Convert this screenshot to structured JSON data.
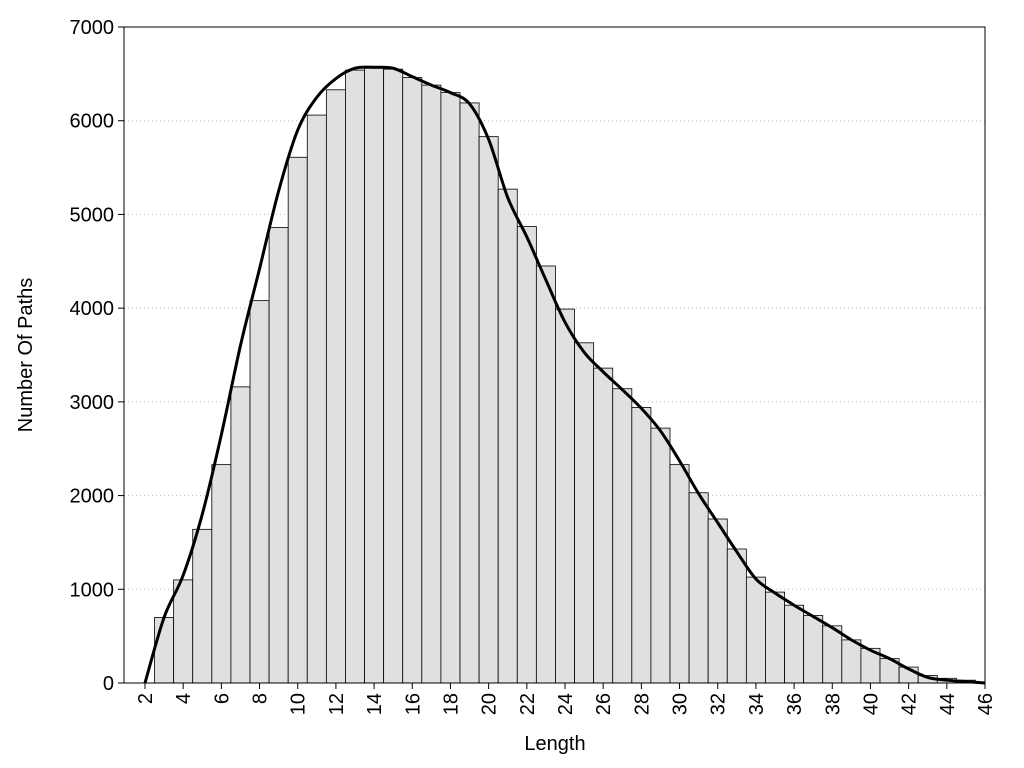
{
  "chart_data": {
    "type": "bar",
    "xlabel": "Length",
    "ylabel": "Number Of Paths",
    "xlim": [
      0.9,
      46
    ],
    "ylim": [
      0,
      7000
    ],
    "xticks": [
      2,
      4,
      6,
      8,
      10,
      12,
      14,
      16,
      18,
      20,
      22,
      24,
      26,
      28,
      30,
      32,
      34,
      36,
      38,
      40,
      42,
      44,
      46
    ],
    "yticks": [
      0,
      1000,
      2000,
      3000,
      4000,
      5000,
      6000,
      7000
    ],
    "grid": true,
    "series": [
      {
        "type": "bar",
        "color": "#e0e0e0",
        "x": [
          3,
          4,
          5,
          6,
          7,
          8,
          9,
          10,
          11,
          12,
          13,
          14,
          15,
          16,
          17,
          18,
          19,
          20,
          21,
          22,
          23,
          24,
          25,
          26,
          27,
          28,
          29,
          30,
          31,
          32,
          33,
          34,
          35,
          36,
          37,
          38,
          39,
          40,
          41,
          42,
          43,
          44,
          45
        ],
        "values": [
          700,
          1100,
          1640,
          2330,
          3160,
          4080,
          4860,
          5610,
          6060,
          6330,
          6540,
          6560,
          6550,
          6460,
          6380,
          6300,
          6190,
          5830,
          5270,
          4870,
          4450,
          3990,
          3630,
          3360,
          3140,
          2940,
          2720,
          2330,
          2030,
          1750,
          1430,
          1130,
          970,
          830,
          720,
          610,
          460,
          370,
          260,
          170,
          80,
          50,
          30
        ]
      },
      {
        "type": "line",
        "color": "#000000",
        "x": [
          2,
          3,
          4,
          5,
          6,
          7,
          8,
          9,
          10,
          11,
          12,
          13,
          14,
          15,
          16,
          17,
          18,
          19,
          20,
          21,
          22,
          23,
          24,
          25,
          26,
          27,
          28,
          29,
          30,
          31,
          32,
          33,
          34,
          35,
          36,
          37,
          38,
          39,
          40,
          41,
          42,
          43,
          44,
          45,
          46
        ],
        "values": [
          0,
          700,
          1150,
          1800,
          2650,
          3600,
          4420,
          5250,
          5900,
          6250,
          6450,
          6560,
          6570,
          6560,
          6470,
          6380,
          6300,
          6180,
          5800,
          5180,
          4760,
          4300,
          3850,
          3530,
          3320,
          3130,
          2930,
          2690,
          2370,
          2020,
          1710,
          1400,
          1110,
          960,
          830,
          710,
          590,
          460,
          350,
          260,
          150,
          60,
          30,
          15,
          0
        ]
      }
    ]
  }
}
